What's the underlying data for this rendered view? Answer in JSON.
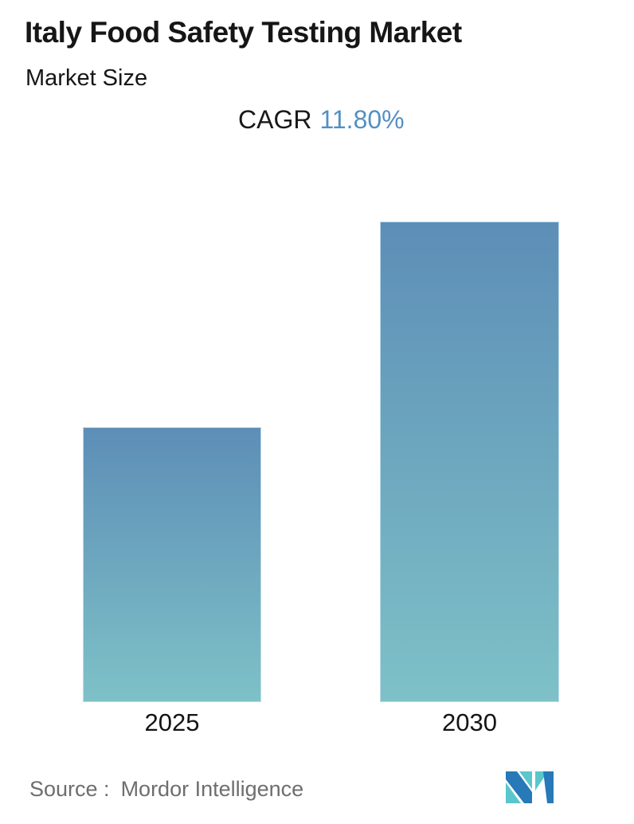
{
  "header": {
    "title": "Italy Food Safety Testing Market",
    "subtitle": "Market Size"
  },
  "cagr": {
    "label": "CAGR",
    "value": "11.80%",
    "value_color": "#5490c2"
  },
  "chart_data": {
    "type": "bar",
    "title": "Italy Food Safety Testing Market",
    "subtitle": "Market Size",
    "annotation": "CAGR 11.80%",
    "categories": [
      "2025",
      "2030"
    ],
    "values": [
      0.572,
      1.0
    ],
    "values_note": "normalized to the 2030 bar height; no numeric value axis is shown",
    "ylim": [
      0,
      1.0
    ],
    "grid": false,
    "legend": false,
    "axes_visible": false,
    "bar_color_top": "#5d8eb7",
    "bar_color_bottom": "#7ec1c7"
  },
  "footer": {
    "source_label": "Source :",
    "source_value": "Mordor Intelligence",
    "source_color": "#6e6e6e",
    "logo_name": "mordor-intelligence-logo",
    "logo_colors": {
      "blue": "#2779b7",
      "teal": "#59c7cc"
    }
  }
}
